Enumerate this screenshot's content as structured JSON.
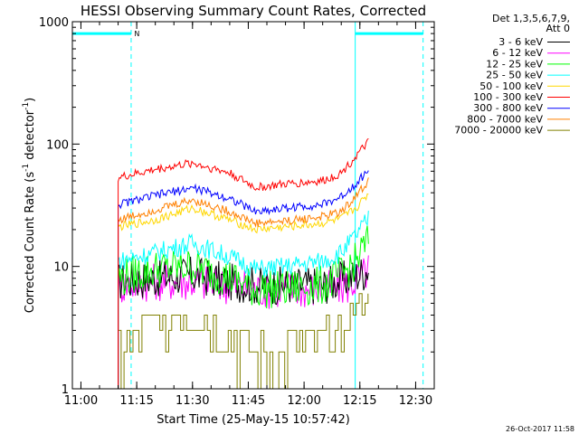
{
  "chart_data": {
    "type": "line",
    "title": "HESSI Observing Summary Count Rates, Corrected",
    "xlabel": "Start Time (25-May-15 10:57:42)",
    "ylabel_parts": [
      "Corrected Count Rate (s",
      "-1",
      " detector",
      "-1",
      ")"
    ],
    "x_start": "10:57:42",
    "x_end": "12:35:00",
    "xticks": [
      {
        "t": "11:00",
        "label": "11:00"
      },
      {
        "t": "11:15",
        "label": "11:15"
      },
      {
        "t": "11:30",
        "label": "11:30"
      },
      {
        "t": "11:45",
        "label": "11:45"
      },
      {
        "t": "12:00",
        "label": "12:00"
      },
      {
        "t": "12:15",
        "label": "12:15"
      },
      {
        "t": "12:30",
        "label": "12:30"
      }
    ],
    "y_scale": "log",
    "ylim": [
      1,
      1000
    ],
    "yticks": [
      {
        "v": 1,
        "label": "1"
      },
      {
        "v": 10,
        "label": "10"
      },
      {
        "v": 100,
        "label": "100"
      },
      {
        "v": 1000,
        "label": "1000"
      }
    ],
    "legend_header": [
      "Det 1,3,5,6,7,9,",
      "Att 0"
    ],
    "legend_position": "right",
    "time_markers": [
      {
        "t": "10:57:42",
        "style": "solid",
        "color": "#00ffff"
      },
      {
        "t": "11:13:30",
        "style": "dashed",
        "color": "#00ffff"
      },
      {
        "t": "12:13:45",
        "style": "solid",
        "color": "#00ffff"
      },
      {
        "t": "12:32:00",
        "style": "dashed",
        "color": "#00ffff"
      }
    ],
    "night_bars": [
      {
        "t1": "10:57:42",
        "t2": "11:13:30",
        "value": 800,
        "color": "#00ffff"
      },
      {
        "t1": "12:13:45",
        "t2": "12:32:00",
        "value": 800,
        "color": "#00ffff"
      }
    ],
    "saa_label": {
      "text": "N",
      "t": "11:14:20",
      "value": 800
    },
    "series": [
      {
        "name": "3 - 6 keV",
        "color": "#000000",
        "points": [
          [
            "11:10",
            "7.5"
          ],
          [
            "11:20",
            "8"
          ],
          [
            "11:30",
            "8.5"
          ],
          [
            "11:40",
            "7.5"
          ],
          [
            "11:47",
            "7"
          ],
          [
            "11:55",
            "7"
          ],
          [
            "12:05",
            "7"
          ],
          [
            "12:12",
            "8"
          ],
          [
            "12:16",
            "9"
          ],
          [
            "12:17:30",
            "10"
          ]
        ]
      },
      {
        "name": "6 - 12 keV",
        "color": "#ff00ff",
        "points": [
          [
            "11:10",
            "7"
          ],
          [
            "11:20",
            "7.5"
          ],
          [
            "11:30",
            "7.5"
          ],
          [
            "11:40",
            "7"
          ],
          [
            "11:47",
            "6.5"
          ],
          [
            "11:55",
            "6.5"
          ],
          [
            "12:05",
            "6.5"
          ],
          [
            "12:12",
            "7"
          ],
          [
            "12:16",
            "8.5"
          ],
          [
            "12:17:30",
            "9.5"
          ]
        ]
      },
      {
        "name": "12 - 25 keV",
        "color": "#00ff00",
        "points": [
          [
            "11:10",
            "8"
          ],
          [
            "11:20",
            "9.5"
          ],
          [
            "11:30",
            "10"
          ],
          [
            "11:40",
            "8"
          ],
          [
            "11:47",
            "6.5"
          ],
          [
            "11:55",
            "6.5"
          ],
          [
            "12:05",
            "7"
          ],
          [
            "12:10",
            "8.5"
          ],
          [
            "12:14",
            "11"
          ],
          [
            "12:17:30",
            "17"
          ]
        ]
      },
      {
        "name": "25 - 50 keV",
        "color": "#00ffff",
        "points": [
          [
            "11:10",
            "11"
          ],
          [
            "11:20",
            "13"
          ],
          [
            "11:30",
            "15.5"
          ],
          [
            "11:40",
            "12"
          ],
          [
            "11:47",
            "9.5"
          ],
          [
            "11:55",
            "10"
          ],
          [
            "12:05",
            "11"
          ],
          [
            "12:10",
            "13"
          ],
          [
            "12:14",
            "18"
          ],
          [
            "12:17:30",
            "25"
          ]
        ]
      },
      {
        "name": "50 - 100 keV",
        "color": "#ffd700",
        "points": [
          [
            "11:10",
            "21"
          ],
          [
            "11:20",
            "24"
          ],
          [
            "11:30",
            "30"
          ],
          [
            "11:40",
            "24"
          ],
          [
            "11:47",
            "20"
          ],
          [
            "11:55",
            "21"
          ],
          [
            "12:05",
            "22.5"
          ],
          [
            "12:10",
            "24.5"
          ],
          [
            "12:14",
            "30"
          ],
          [
            "12:17:30",
            "40"
          ]
        ]
      },
      {
        "name": "100 - 300 keV",
        "color": "#ff0000",
        "points": [
          [
            "11:10",
            "53"
          ],
          [
            "11:20",
            "62"
          ],
          [
            "11:30",
            "70"
          ],
          [
            "11:40",
            "58"
          ],
          [
            "11:47",
            "44"
          ],
          [
            "11:55",
            "47"
          ],
          [
            "12:05",
            "50"
          ],
          [
            "12:10",
            "58"
          ],
          [
            "12:14",
            "80"
          ],
          [
            "12:17:30",
            "105"
          ]
        ]
      },
      {
        "name": "300 - 800 keV",
        "color": "#0000ff",
        "points": [
          [
            "11:10",
            "32"
          ],
          [
            "11:20",
            "38"
          ],
          [
            "11:30",
            "44"
          ],
          [
            "11:40",
            "36"
          ],
          [
            "11:47",
            "28"
          ],
          [
            "11:55",
            "30"
          ],
          [
            "12:05",
            "32"
          ],
          [
            "12:10",
            "37"
          ],
          [
            "12:14",
            "48"
          ],
          [
            "12:17:30",
            "62"
          ]
        ]
      },
      {
        "name": "800 - 7000 keV",
        "color": "#ff8000",
        "points": [
          [
            "11:10",
            "24"
          ],
          [
            "11:20",
            "29"
          ],
          [
            "11:30",
            "35"
          ],
          [
            "11:40",
            "28"
          ],
          [
            "11:47",
            "22.5"
          ],
          [
            "11:55",
            "23.5"
          ],
          [
            "12:05",
            "25.5"
          ],
          [
            "12:10",
            "28"
          ],
          [
            "12:14",
            "38"
          ],
          [
            "12:17:30",
            "50"
          ]
        ]
      },
      {
        "name": "7000 - 20000 keV",
        "color": "#808000",
        "points": [
          [
            "11:10",
            "2"
          ],
          [
            "11:15",
            "2.5"
          ],
          [
            "11:20",
            "3.5"
          ],
          [
            "11:30",
            "4"
          ],
          [
            "11:38",
            "3"
          ],
          [
            "11:45",
            "2"
          ],
          [
            "11:55",
            "2"
          ],
          [
            "12:05",
            "2.5"
          ],
          [
            "12:10",
            "3"
          ],
          [
            "12:14",
            "4.5"
          ],
          [
            "12:17:30",
            "6"
          ]
        ]
      }
    ]
  },
  "footer": {
    "timestamp": "26-Oct-2017 11:58"
  }
}
